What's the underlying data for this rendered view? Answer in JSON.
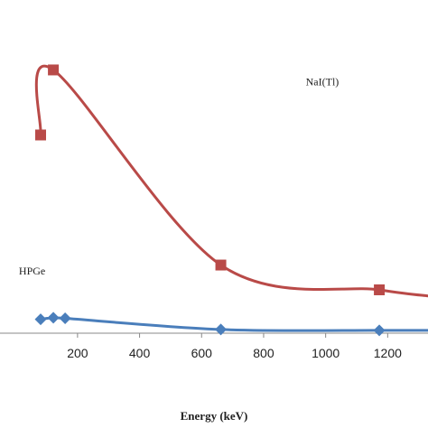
{
  "chart_data": {
    "type": "line",
    "title": "",
    "xlabel": "Energy (keV)",
    "ylabel": "",
    "xlim": [
      -50,
      1330
    ],
    "ylim": [
      0,
      100
    ],
    "xticks": [
      200,
      400,
      600,
      800,
      1000,
      1200
    ],
    "grid": false,
    "legend": "none",
    "annotations": [
      {
        "text": "NaI(Tl)",
        "x": 1000,
        "y": 80
      },
      {
        "text": "HPGe",
        "x": 75,
        "y": 19
      }
    ],
    "series": [
      {
        "name": "NaI(Tl)",
        "color": "#b94a48",
        "marker": "square",
        "values": [
          {
            "x": 81,
            "y": 64
          },
          {
            "x": 122,
            "y": 85
          },
          {
            "x": 662,
            "y": 22
          },
          {
            "x": 1173,
            "y": 14
          },
          {
            "x": 1332,
            "y": 12
          }
        ],
        "markers_shown": [
          true,
          true,
          true,
          true,
          false
        ]
      },
      {
        "name": "HPGe",
        "color": "#4a7ebb",
        "marker": "diamond",
        "values": [
          {
            "x": 81,
            "y": 4.5
          },
          {
            "x": 122,
            "y": 5.0
          },
          {
            "x": 160,
            "y": 4.8
          },
          {
            "x": 662,
            "y": 1.2
          },
          {
            "x": 1173,
            "y": 0.9
          },
          {
            "x": 1332,
            "y": 0.9
          }
        ],
        "markers_shown": [
          true,
          true,
          true,
          true,
          true,
          false
        ]
      }
    ]
  }
}
